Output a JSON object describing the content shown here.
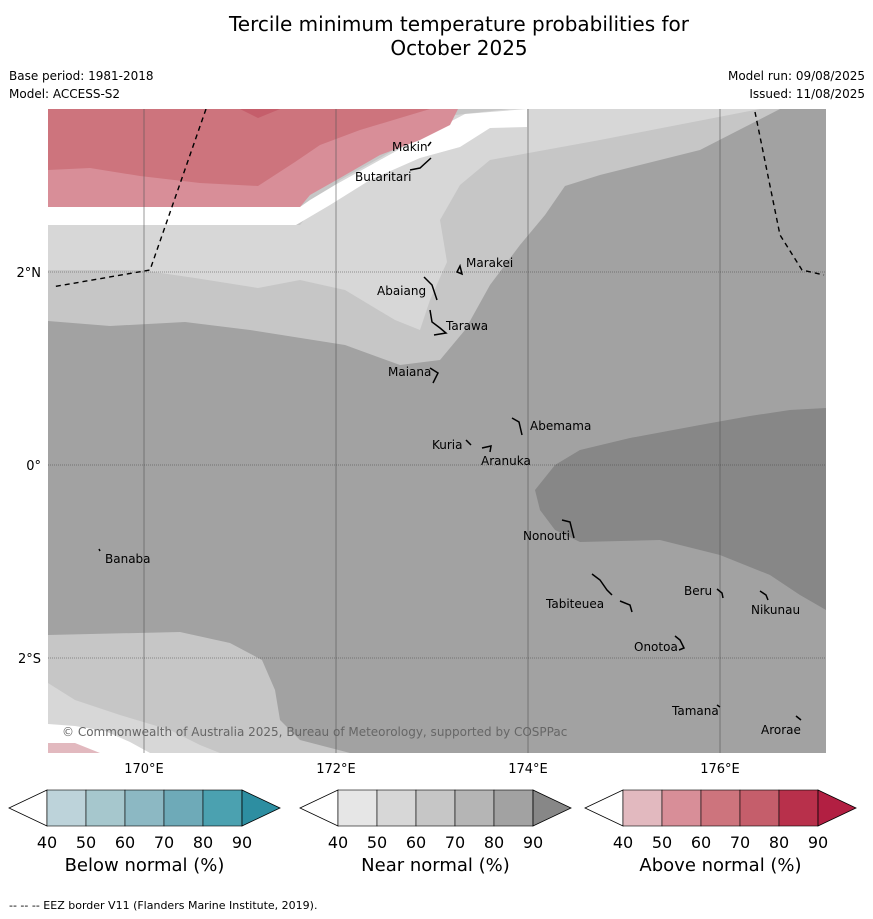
{
  "title_line1": "Tercile minimum temperature probabilities for",
  "title_line2": "October 2025",
  "base_period": "Base period: 1981-2018",
  "model": "Model: ACCESS-S2",
  "model_run": "Model run: 09/08/2025",
  "issued": "Issued: 11/08/2025",
  "axes": {
    "lat_ticks": [
      "2°N",
      "0°",
      "2°S"
    ],
    "lon_ticks": [
      "170°E",
      "172°E",
      "174°E",
      "176°E"
    ]
  },
  "places": [
    "Makin",
    "Butaritari",
    "Marakei",
    "Abaiang",
    "Tarawa",
    "Maiana",
    "Abemama",
    "Kuria",
    "Aranuka",
    "Nonouti",
    "Banaba",
    "Beru",
    "Tabiteuea",
    "Nikunau",
    "Onotoa",
    "Tamana",
    "Arorae"
  ],
  "copyright": "© Commonwealth of Australia 2025, Bureau of Meteorology, supported by COSPPac",
  "colorbars": [
    {
      "label": "Below normal (%)",
      "ticks": [
        "40",
        "50",
        "60",
        "70",
        "80",
        "90"
      ],
      "colors": [
        "#bdd3da",
        "#a6c7cd",
        "#8cb8c3",
        "#6eaab8",
        "#4ba1b0",
        "#2d8ea1"
      ]
    },
    {
      "label": "Near normal (%)",
      "ticks": [
        "40",
        "50",
        "60",
        "70",
        "80",
        "90"
      ],
      "colors": [
        "#e6e6e6",
        "#d7d7d7",
        "#c6c6c6",
        "#b5b5b5",
        "#a2a2a2",
        "#878787"
      ]
    },
    {
      "label": "Above normal (%)",
      "ticks": [
        "40",
        "50",
        "60",
        "70",
        "80",
        "90"
      ],
      "colors": [
        "#e2b9bf",
        "#d88e98",
        "#cd747d",
        "#c55e6b",
        "#b8304b",
        "#b21f42"
      ]
    }
  ],
  "legend_note": "--  --  -- EEZ border V11 (Flanders Marine Institute, 2019)."
}
